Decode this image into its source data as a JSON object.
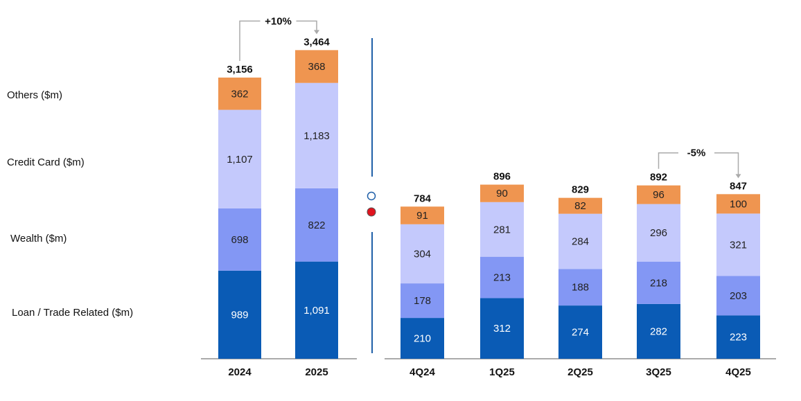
{
  "chart_data": {
    "type": "bar",
    "stacked": true,
    "colors": {
      "Loan / Trade Related ($m)": "#0A5BB5",
      "Wealth ($m)": "#8397F4",
      "Credit Card ($m)": "#C4C9FC",
      "Others ($m)": "#EF9550",
      "separator": "#1F5FA8",
      "marker_filled": "#E0141E"
    },
    "legend_position": "left",
    "grid": false,
    "panels": [
      {
        "categories": [
          "2024",
          "2025"
        ],
        "series": [
          {
            "name": "Loan / Trade Related ($m)",
            "values": [
              989,
              1091
            ]
          },
          {
            "name": "Wealth ($m)",
            "values": [
              698,
              822
            ]
          },
          {
            "name": "Credit Card ($m)",
            "values": [
              1107,
              1183
            ]
          },
          {
            "name": "Others ($m)",
            "values": [
              362,
              368
            ]
          }
        ],
        "value_labels": [
          [
            "989",
            "1,091"
          ],
          [
            "698",
            "822"
          ],
          [
            "1,107",
            "1,183"
          ],
          [
            "362",
            "368"
          ]
        ],
        "totals": [
          3156,
          3464
        ],
        "total_labels": [
          "3,156",
          "3,464"
        ],
        "annotation": {
          "text": "+10%",
          "from": "2024",
          "to": "2025"
        }
      },
      {
        "categories": [
          "4Q24",
          "1Q25",
          "2Q25",
          "3Q25",
          "4Q25"
        ],
        "series": [
          {
            "name": "Loan / Trade Related ($m)",
            "values": [
              210,
              312,
              274,
              282,
              223
            ]
          },
          {
            "name": "Wealth ($m)",
            "values": [
              178,
              213,
              188,
              218,
              203
            ]
          },
          {
            "name": "Credit Card ($m)",
            "values": [
              304,
              281,
              284,
              296,
              321
            ]
          },
          {
            "name": "Others ($m)",
            "values": [
              91,
              90,
              82,
              96,
              100
            ]
          }
        ],
        "value_labels": [
          [
            "210",
            "312",
            "274",
            "282",
            "223"
          ],
          [
            "178",
            "213",
            "188",
            "218",
            "203"
          ],
          [
            "304",
            "281",
            "284",
            "296",
            "321"
          ],
          [
            "91",
            "90",
            "82",
            "96",
            "100"
          ]
        ],
        "totals": [
          784,
          896,
          829,
          892,
          847
        ],
        "total_labels": [
          "784",
          "896",
          "829",
          "892",
          "847"
        ],
        "annotation": {
          "text": "-5%",
          "from": "3Q25",
          "to": "4Q25"
        }
      }
    ],
    "legend": [
      "Others ($m)",
      "Credit Card ($m)",
      "Wealth ($m)",
      "Loan / Trade Related ($m)"
    ]
  }
}
